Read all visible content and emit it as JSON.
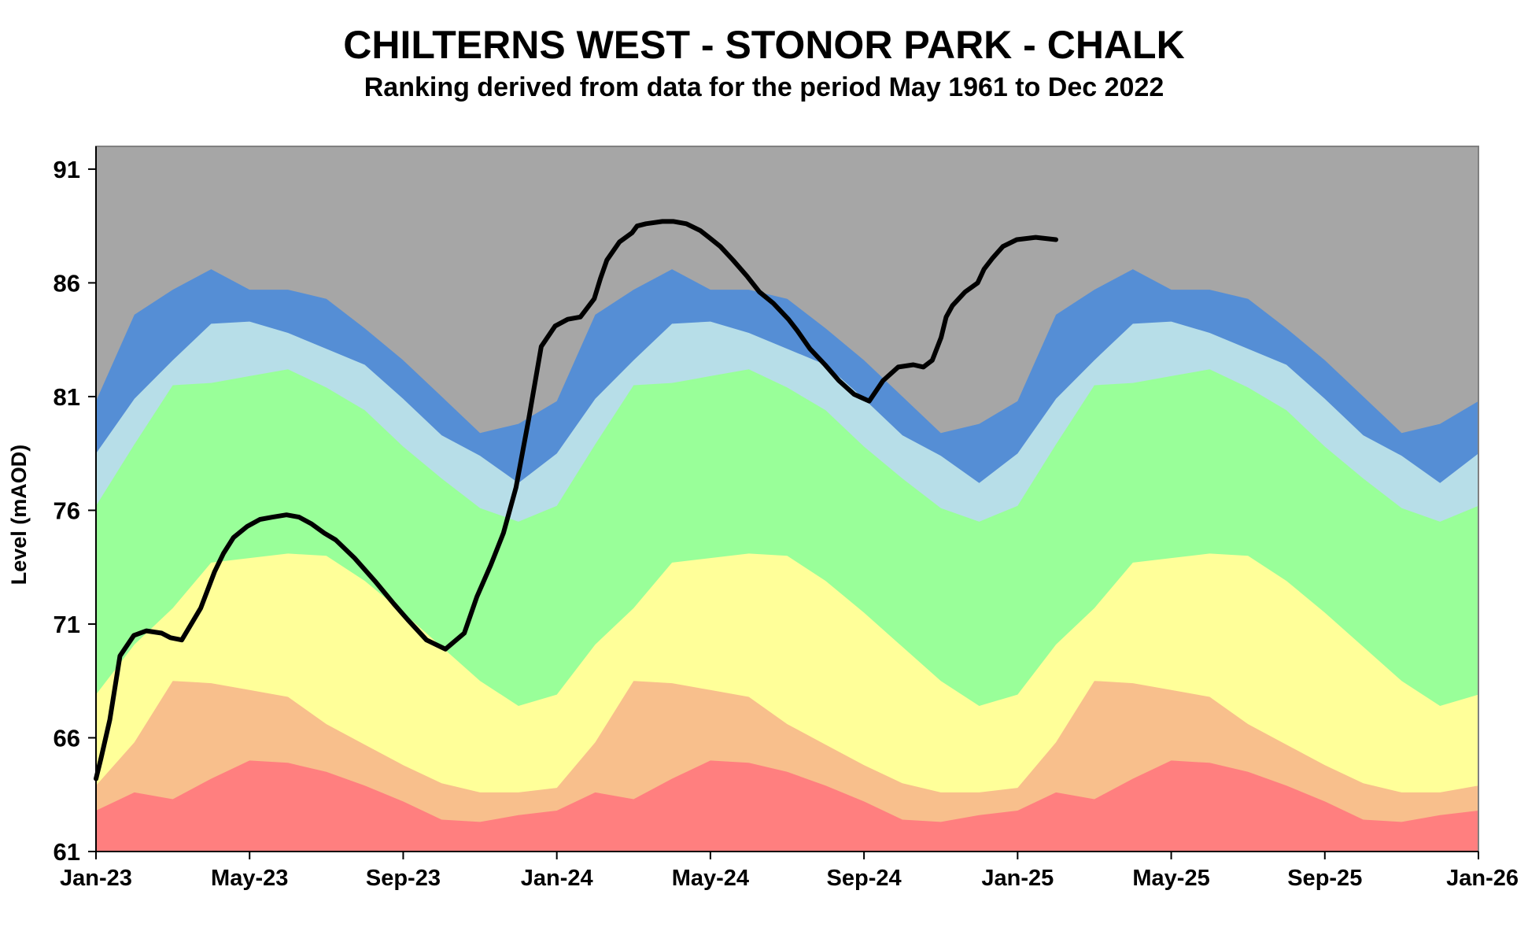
{
  "title": "CHILTERNS WEST - STONOR PARK  - CHALK",
  "subtitle": "Ranking derived from data for the period May 1961 to Dec 2022",
  "chart_data": {
    "type": "area",
    "title": "CHILTERNS WEST - STONOR PARK  - CHALK",
    "subtitle": "Ranking derived from data for the period May 1961 to Dec 2022",
    "ylabel": "Level (mAOD)",
    "xlabel": "",
    "ylim": [
      61,
      92
    ],
    "yticks": [
      61,
      66,
      71,
      76,
      81,
      86,
      91
    ],
    "x_range": [
      "2023-01",
      "2026-01"
    ],
    "xticks": [
      "Jan-23",
      "May-23",
      "Sep-23",
      "Jan-24",
      "May-24",
      "Sep-24",
      "Jan-25",
      "May-25",
      "Sep-25",
      "Jan-26"
    ],
    "grid": false,
    "legend": "none",
    "band_months": [
      0,
      1,
      2,
      3,
      4,
      5,
      6,
      7,
      8,
      9,
      10,
      11,
      12,
      13,
      14,
      15,
      16,
      17,
      18,
      19,
      20,
      21,
      22,
      23,
      24,
      25,
      26,
      27,
      28,
      29,
      30,
      31,
      32,
      33,
      34,
      35,
      36
    ],
    "band_monthly_upper_bounds": {
      "red": [
        62.8,
        63.6,
        63.3,
        64.2,
        65.0,
        64.9,
        64.5,
        63.9,
        63.2,
        62.4,
        62.3,
        62.6,
        62.8,
        63.6,
        63.3,
        64.2,
        65.0,
        64.9,
        64.5,
        63.9,
        63.2,
        62.4,
        62.3,
        62.6,
        62.8,
        63.6,
        63.3,
        64.2,
        65.0,
        64.9,
        64.5,
        63.9,
        63.2,
        62.4,
        62.3,
        62.6,
        62.8
      ],
      "orange": [
        63.9,
        65.8,
        68.5,
        68.4,
        68.1,
        67.8,
        66.6,
        65.7,
        64.8,
        64.0,
        63.6,
        63.6,
        63.8,
        65.8,
        68.5,
        68.4,
        68.1,
        67.8,
        66.6,
        65.7,
        64.8,
        64.0,
        63.6,
        63.6,
        63.8,
        65.8,
        68.5,
        68.4,
        68.1,
        67.8,
        66.6,
        65.7,
        64.8,
        64.0,
        63.6,
        63.6,
        63.9
      ],
      "yellow": [
        67.9,
        70.1,
        71.7,
        73.7,
        73.9,
        74.1,
        74.0,
        72.9,
        71.5,
        70.0,
        68.5,
        67.4,
        67.9,
        70.1,
        71.7,
        73.7,
        73.9,
        74.1,
        74.0,
        72.9,
        71.5,
        70.0,
        68.5,
        67.4,
        67.9,
        70.1,
        71.7,
        73.7,
        73.9,
        74.1,
        74.0,
        72.9,
        71.5,
        70.0,
        68.5,
        67.4,
        67.9
      ],
      "green": [
        76.2,
        78.9,
        81.5,
        81.6,
        81.9,
        82.2,
        81.4,
        80.4,
        78.8,
        77.4,
        76.1,
        75.5,
        76.2,
        78.9,
        81.5,
        81.6,
        81.9,
        82.2,
        81.4,
        80.4,
        78.8,
        77.4,
        76.1,
        75.5,
        76.2,
        78.9,
        81.5,
        81.6,
        81.9,
        82.2,
        81.4,
        80.4,
        78.8,
        77.4,
        76.1,
        75.5,
        76.2
      ],
      "light_blue": [
        78.5,
        80.9,
        82.6,
        84.2,
        84.3,
        83.8,
        83.1,
        82.4,
        80.9,
        79.3,
        78.4,
        77.2,
        78.5,
        80.9,
        82.6,
        84.2,
        84.3,
        83.8,
        83.1,
        82.4,
        80.9,
        79.3,
        78.4,
        77.2,
        78.5,
        80.9,
        82.6,
        84.2,
        84.3,
        83.8,
        83.1,
        82.4,
        80.9,
        79.3,
        78.4,
        77.2,
        78.5
      ],
      "blue": [
        80.8,
        84.6,
        85.7,
        86.6,
        85.7,
        85.7,
        85.3,
        84.0,
        82.6,
        81.0,
        79.4,
        79.8,
        80.8,
        84.6,
        85.7,
        86.6,
        85.7,
        85.7,
        85.3,
        84.0,
        82.6,
        81.0,
        79.4,
        79.8,
        80.8,
        84.6,
        85.7,
        86.6,
        85.7,
        85.7,
        85.3,
        84.0,
        82.6,
        81.0,
        79.4,
        79.8,
        80.8
      ],
      "grey": [
        92,
        92,
        92,
        92,
        92,
        92,
        92,
        92,
        92,
        92,
        92,
        92,
        92,
        92,
        92,
        92,
        92,
        92,
        92,
        92,
        92,
        92,
        92,
        92,
        92,
        92,
        92,
        92,
        92,
        92,
        92,
        92,
        92,
        92,
        92,
        92,
        92
      ]
    },
    "band_colors": {
      "red": "#ff7f7f",
      "orange": "#f8bf8c",
      "yellow": "#ffff99",
      "green": "#99ff99",
      "light_blue": "#b7dee8",
      "blue": "#558ed5",
      "grey": "#a6a6a6"
    },
    "series": [
      {
        "color": "#000000",
        "x": [
          "2023-01-01",
          "2023-01-05",
          "2023-01-12",
          "2023-01-20",
          "2023-01-31",
          "2023-02-10",
          "2023-02-22",
          "2023-03-01",
          "2023-03-10",
          "2023-03-25",
          "2023-04-05",
          "2023-04-12",
          "2023-04-20",
          "2023-05-01",
          "2023-05-11",
          "2023-05-21",
          "2023-06-01",
          "2023-06-11",
          "2023-06-21",
          "2023-07-01",
          "2023-07-10",
          "2023-07-25",
          "2023-08-10",
          "2023-08-25",
          "2023-09-05",
          "2023-09-20",
          "2023-10-05",
          "2023-10-20",
          "2023-10-30",
          "2023-11-10",
          "2023-11-20",
          "2023-11-30",
          "2023-12-10",
          "2023-12-20",
          "2023-12-31",
          "2024-01-10",
          "2024-01-20",
          "2024-01-31",
          "2024-02-05",
          "2024-02-10",
          "2024-02-20",
          "2024-03-01",
          "2024-03-05",
          "2024-03-12",
          "2024-03-25",
          "2024-04-03",
          "2024-04-13",
          "2024-04-24",
          "2024-05-01",
          "2024-05-10",
          "2024-05-20",
          "2024-05-31",
          "2024-06-10",
          "2024-06-21",
          "2024-07-03",
          "2024-07-10",
          "2024-07-20",
          "2024-08-01",
          "2024-08-12",
          "2024-08-24",
          "2024-09-05",
          "2024-09-16",
          "2024-09-28",
          "2024-10-10",
          "2024-10-18",
          "2024-10-25",
          "2024-11-01",
          "2024-11-05",
          "2024-11-10",
          "2024-11-20",
          "2024-11-30",
          "2024-12-05",
          "2024-12-12",
          "2024-12-20",
          "2024-12-31",
          "2025-01-15",
          "2025-01-31",
          "2025-02-10",
          "2025-02-20",
          "2025-03-01",
          "2025-03-10",
          "2025-03-20",
          "2025-04-01",
          "2025-04-08",
          "2025-04-15"
        ],
        "y": [
          64.2,
          65.1,
          66.8,
          69.6,
          70.5,
          70.7,
          70.6,
          70.4,
          70.3,
          71.7,
          73.3,
          74.1,
          74.8,
          75.3,
          75.6,
          75.7,
          75.8,
          75.7,
          75.4,
          75.0,
          74.7,
          73.9,
          72.9,
          71.9,
          71.2,
          70.3,
          69.9,
          70.6,
          72.2,
          73.6,
          75.0,
          77.0,
          80.0,
          83.2,
          84.1,
          84.4,
          84.5,
          85.3,
          86.2,
          87.0,
          87.8,
          88.2,
          88.5,
          88.6,
          88.7,
          88.7,
          88.6,
          88.3,
          88.0,
          87.6,
          87.0,
          86.3,
          85.6,
          85.1,
          84.4,
          83.9,
          83.1,
          82.4,
          81.7,
          81.1,
          80.8,
          81.7,
          82.3,
          82.4,
          82.3,
          82.6,
          83.6,
          84.5,
          85.0,
          85.6,
          86.0,
          86.6,
          87.1,
          87.6,
          87.9,
          88.0,
          87.9,
          null,
          null,
          null,
          null,
          null,
          null,
          null,
          null
        ]
      }
    ]
  }
}
